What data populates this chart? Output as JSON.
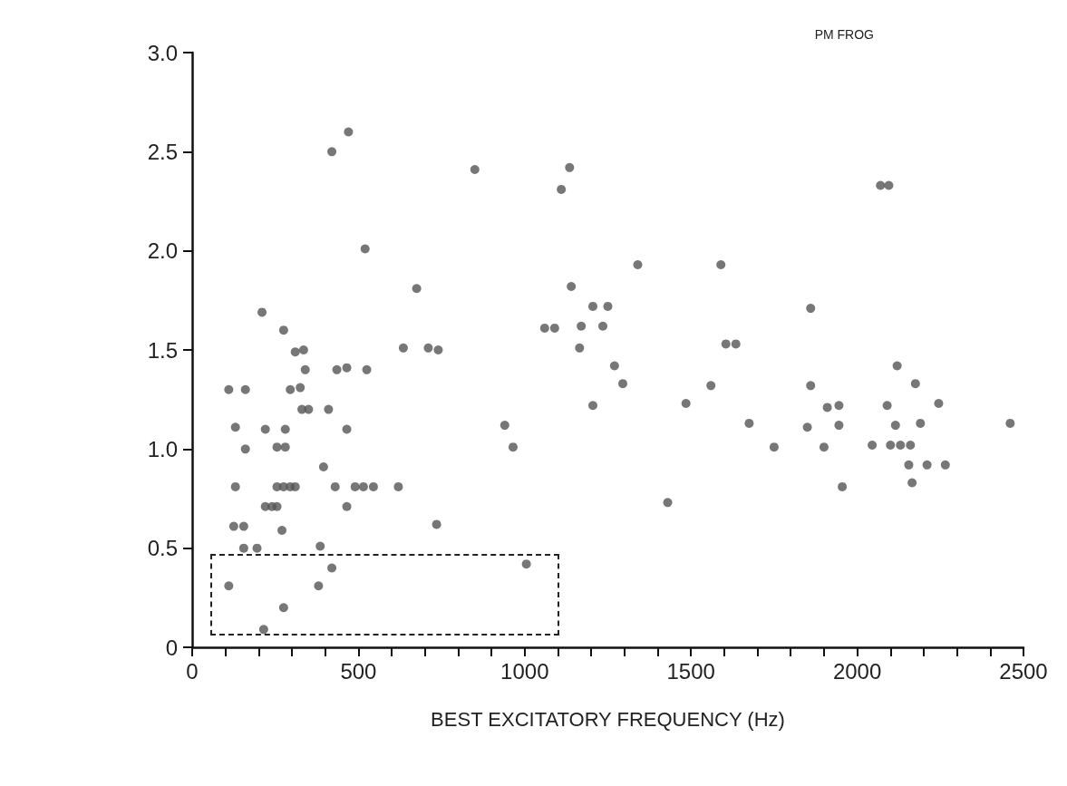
{
  "chart_data": {
    "type": "scatter",
    "title": "PM FROG",
    "xlabel": "BEST EXCITATORY FREQUENCY (Hz)",
    "color": "#555555",
    "marker": "circle",
    "grid": false,
    "xlim": [
      0,
      2500
    ],
    "ylim": [
      0,
      3
    ],
    "xticks": [
      0,
      {
        "value": 100,
        "label": null
      },
      {
        "value": 200,
        "label": null
      },
      {
        "value": 300,
        "label": null
      },
      {
        "value": 400,
        "label": null
      },
      500,
      {
        "value": 600,
        "label": null
      },
      {
        "value": 700,
        "label": null
      },
      {
        "value": 800,
        "label": null
      },
      {
        "value": 900,
        "label": null
      },
      1000,
      {
        "value": 1100,
        "label": null
      },
      {
        "value": 1200,
        "label": null
      },
      {
        "value": 1300,
        "label": null
      },
      {
        "value": 1400,
        "label": null
      },
      1500,
      {
        "value": 1600,
        "label": null
      },
      {
        "value": 1700,
        "label": null
      },
      {
        "value": 1800,
        "label": null
      },
      {
        "value": 1900,
        "label": null
      },
      2000,
      {
        "value": 2100,
        "label": null
      },
      {
        "value": 2200,
        "label": null
      },
      {
        "value": 2300,
        "label": null
      },
      {
        "value": 2400,
        "label": null
      },
      2500
    ],
    "yticks": [
      0,
      0.5,
      {
        "value": 1,
        "label": "1.0"
      },
      1.5,
      {
        "value": 2,
        "label": "2.0"
      },
      2.5,
      {
        "value": 3,
        "label": "3.0"
      }
    ],
    "x": [
      470,
      420,
      850,
      520,
      675,
      210,
      275,
      310,
      335,
      340,
      435,
      465,
      525,
      635,
      710,
      740,
      110,
      160,
      295,
      325,
      330,
      350,
      410,
      130,
      220,
      280,
      465,
      160,
      255,
      280,
      395,
      130,
      255,
      275,
      295,
      310,
      430,
      490,
      515,
      545,
      620,
      220,
      240,
      255,
      465,
      735,
      125,
      155,
      270,
      155,
      195,
      385,
      420,
      110,
      380,
      275,
      215,
      1135,
      1110,
      1340,
      1590,
      1140,
      1205,
      1250,
      1060,
      1090,
      1170,
      1235,
      1165,
      1605,
      1635,
      1270,
      1295,
      1205,
      1485,
      1560,
      1675,
      940,
      965,
      1430,
      1005,
      2070,
      2095,
      1860,
      2120,
      1860,
      2175,
      1910,
      1945,
      2090,
      2245,
      1850,
      1945,
      2115,
      2190,
      2460,
      1750,
      1900,
      2045,
      2100,
      2130,
      2160,
      2155,
      2210,
      2265,
      1955,
      2165
    ],
    "values": [
      2.6,
      2.5,
      2.41,
      2.01,
      1.81,
      1.69,
      1.6,
      1.49,
      1.5,
      1.4,
      1.4,
      1.41,
      1.4,
      1.51,
      1.51,
      1.5,
      1.3,
      1.3,
      1.3,
      1.31,
      1.2,
      1.2,
      1.2,
      1.11,
      1.1,
      1.1,
      1.1,
      1,
      1.01,
      1.01,
      0.91,
      0.81,
      0.81,
      0.81,
      0.81,
      0.81,
      0.81,
      0.81,
      0.81,
      0.81,
      0.81,
      0.71,
      0.71,
      0.71,
      0.71,
      0.62,
      0.61,
      0.61,
      0.59,
      0.5,
      0.5,
      0.51,
      0.4,
      0.31,
      0.31,
      0.2,
      0.09,
      2.42,
      2.31,
      1.93,
      1.93,
      1.82,
      1.72,
      1.72,
      1.61,
      1.61,
      1.62,
      1.62,
      1.51,
      1.53,
      1.53,
      1.42,
      1.33,
      1.22,
      1.23,
      1.32,
      1.13,
      1.12,
      1.01,
      0.73,
      0.42,
      2.33,
      2.33,
      1.71,
      1.42,
      1.32,
      1.33,
      1.21,
      1.22,
      1.22,
      1.23,
      1.11,
      1.12,
      1.12,
      1.13,
      1.13,
      1.01,
      1.01,
      1.02,
      1.02,
      1.02,
      1.02,
      0.92,
      0.92,
      0.92,
      0.81,
      0.83
    ]
  }
}
